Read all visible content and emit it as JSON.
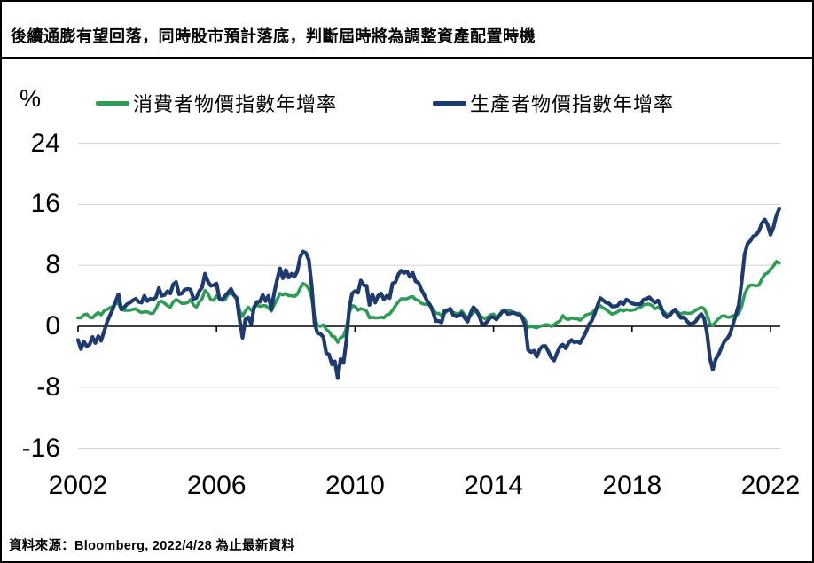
{
  "header": {
    "title": "後續通膨有望回落，同時股市預計落底，判斷屆時將為調整資產配置時機"
  },
  "footer": {
    "source": "資料來源：Bloomberg, 2022/4/28 為止最新資料"
  },
  "colors": {
    "cpi_line": "#2e9b57",
    "ppi_line": "#1e3a6e",
    "gridline": "#d9d9d9",
    "axis": "#000000"
  },
  "chart_data": {
    "type": "line",
    "unit_label": "%",
    "legend_position": "top",
    "grid": true,
    "y_axis": {
      "range": [
        -16,
        24
      ],
      "ticks": [
        24,
        16,
        8,
        0,
        -8,
        -16
      ],
      "tick_labels": [
        "24",
        "16",
        "8",
        "0",
        "-8",
        "-16"
      ]
    },
    "x_axis": {
      "start_year": 2002,
      "end": "2022-04",
      "ticks": [
        2002,
        2006,
        2010,
        2014,
        2018,
        2022
      ],
      "tick_labels": [
        "2002",
        "2006",
        "2010",
        "2014",
        "2018",
        "2022"
      ]
    },
    "series": [
      {
        "key": "cpi",
        "name": "消費者物價指數年增率",
        "color": "#2e9b57",
        "frequency": "monthly",
        "start": "2002-01",
        "values": [
          1.1,
          1.1,
          1.5,
          1.6,
          1.2,
          1.1,
          1.5,
          1.8,
          1.5,
          2.0,
          2.2,
          2.4,
          2.6,
          3.0,
          3.0,
          2.2,
          2.1,
          2.1,
          2.1,
          2.2,
          2.3,
          2.0,
          1.8,
          1.9,
          1.9,
          1.7,
          1.7,
          2.3,
          3.1,
          3.3,
          3.0,
          2.7,
          2.5,
          3.2,
          3.5,
          3.3,
          3.0,
          3.0,
          3.1,
          3.5,
          2.8,
          2.5,
          3.2,
          3.6,
          4.7,
          4.3,
          3.5,
          3.4,
          4.0,
          3.6,
          3.4,
          3.5,
          4.2,
          4.3,
          4.1,
          3.8,
          2.1,
          1.3,
          2.0,
          2.5,
          2.1,
          2.4,
          2.8,
          2.6,
          2.7,
          2.7,
          2.4,
          2.0,
          2.8,
          3.5,
          4.3,
          4.1,
          4.3,
          4.0,
          4.0,
          3.9,
          4.2,
          5.0,
          5.6,
          5.4,
          4.9,
          3.7,
          1.1,
          0.1,
          0.0,
          0.2,
          -0.4,
          -0.7,
          -1.3,
          -1.4,
          -2.1,
          -1.5,
          -1.3,
          -0.2,
          1.8,
          2.7,
          2.6,
          2.1,
          2.3,
          2.2,
          2.0,
          1.1,
          1.2,
          1.1,
          1.1,
          1.2,
          1.1,
          1.5,
          1.6,
          2.1,
          2.7,
          3.2,
          3.6,
          3.6,
          3.6,
          3.8,
          3.9,
          3.5,
          3.4,
          3.0,
          2.9,
          2.9,
          2.7,
          2.3,
          1.7,
          1.7,
          1.4,
          1.7,
          2.0,
          2.2,
          1.8,
          1.7,
          1.6,
          2.0,
          1.5,
          1.1,
          1.4,
          1.8,
          2.0,
          1.5,
          1.2,
          1.0,
          1.2,
          1.5,
          1.6,
          1.1,
          1.5,
          2.0,
          2.1,
          2.1,
          2.0,
          1.7,
          1.7,
          1.7,
          1.3,
          0.8,
          -0.1,
          0.0,
          -0.1,
          -0.2,
          0.0,
          0.1,
          0.2,
          0.2,
          0.0,
          0.2,
          0.5,
          0.7,
          1.4,
          1.0,
          0.9,
          1.1,
          1.0,
          1.0,
          0.8,
          1.1,
          1.5,
          1.6,
          1.7,
          2.1,
          2.5,
          2.7,
          2.4,
          2.2,
          1.9,
          1.6,
          1.7,
          1.9,
          2.2,
          2.0,
          2.2,
          2.1,
          2.1,
          2.2,
          2.4,
          2.5,
          2.8,
          2.9,
          2.9,
          2.7,
          2.3,
          2.5,
          2.2,
          1.9,
          1.6,
          1.5,
          1.9,
          2.0,
          1.8,
          1.6,
          1.8,
          1.7,
          1.7,
          1.8,
          2.1,
          2.3,
          2.5,
          2.3,
          1.5,
          0.3,
          0.1,
          0.6,
          1.0,
          1.3,
          1.4,
          1.2,
          1.2,
          1.4,
          1.4,
          1.7,
          2.6,
          4.2,
          5.0,
          5.4,
          5.4,
          5.3,
          5.4,
          6.2,
          6.8,
          7.0,
          7.5,
          7.9,
          8.5,
          8.3
        ]
      },
      {
        "key": "ppi",
        "name": "生產者物價指數年增率",
        "color": "#1e3a6e",
        "frequency": "monthly",
        "start": "2002-01",
        "values": [
          -1.8,
          -3.0,
          -2.0,
          -2.6,
          -2.4,
          -1.4,
          -2.2,
          -1.3,
          -1.9,
          -0.7,
          0.5,
          1.4,
          2.2,
          3.2,
          4.2,
          2.2,
          2.5,
          2.9,
          3.1,
          3.4,
          3.6,
          3.2,
          3.1,
          4.0,
          3.3,
          3.6,
          3.5,
          3.8,
          5.0,
          4.0,
          4.1,
          4.6,
          4.3,
          5.5,
          5.8,
          4.2,
          4.3,
          4.8,
          4.9,
          4.8,
          3.6,
          3.7,
          4.6,
          5.1,
          6.9,
          5.9,
          5.3,
          5.4,
          5.6,
          3.6,
          3.5,
          4.0,
          4.4,
          4.9,
          4.1,
          3.6,
          0.9,
          -1.5,
          0.9,
          1.2,
          0.3,
          2.5,
          3.2,
          3.2,
          4.1,
          3.3,
          4.0,
          2.2,
          4.4,
          6.1,
          7.6,
          6.3,
          7.4,
          6.4,
          6.9,
          6.5,
          7.2,
          9.1,
          9.8,
          9.6,
          8.7,
          5.2,
          0.4,
          -0.9,
          -1.0,
          -1.4,
          -3.5,
          -3.7,
          -5.0,
          -4.6,
          -6.8,
          -4.3,
          -4.8,
          -1.9,
          2.4,
          4.3,
          4.6,
          4.4,
          6.0,
          5.4,
          5.3,
          2.8,
          4.2,
          3.1,
          4.0,
          4.3,
          3.5,
          4.0,
          3.7,
          5.6,
          5.8,
          6.8,
          7.3,
          7.0,
          7.2,
          6.5,
          7.0,
          5.9,
          5.7,
          4.8,
          4.1,
          3.3,
          2.8,
          1.9,
          0.7,
          0.7,
          0.5,
          2.0,
          2.1,
          2.3,
          1.5,
          1.3,
          1.4,
          1.7,
          1.1,
          0.6,
          1.7,
          2.5,
          2.1,
          1.4,
          0.3,
          0.3,
          0.7,
          1.2,
          1.2,
          0.9,
          1.4,
          1.9,
          2.0,
          1.6,
          1.7,
          1.8,
          1.6,
          1.5,
          1.1,
          0.1,
          -3.1,
          -3.4,
          -3.2,
          -4.0,
          -3.0,
          -2.6,
          -2.6,
          -3.3,
          -4.1,
          -4.5,
          -3.5,
          -2.7,
          -2.4,
          -2.9,
          -2.2,
          -1.8,
          -2.1,
          -2.0,
          -2.2,
          -1.5,
          -0.8,
          0.2,
          0.7,
          1.6,
          2.7,
          3.7,
          3.4,
          3.1,
          3.0,
          2.6,
          2.6,
          2.7,
          3.2,
          2.9,
          3.5,
          3.3,
          3.0,
          2.9,
          2.9,
          2.9,
          3.5,
          3.6,
          3.8,
          3.4,
          3.1,
          3.4,
          2.6,
          1.6,
          1.2,
          1.4,
          1.9,
          2.2,
          1.5,
          1.1,
          1.2,
          0.7,
          0.3,
          0.4,
          0.6,
          1.2,
          1.6,
          1.0,
          -0.9,
          -4.2,
          -5.7,
          -4.3,
          -3.7,
          -2.8,
          -2.0,
          -1.6,
          -1.0,
          0.3,
          1.5,
          2.8,
          5.9,
          9.4,
          10.8,
          11.2,
          11.8,
          12.0,
          12.5,
          13.5,
          14.0,
          13.3,
          12.0,
          13.0,
          14.5,
          15.4
        ]
      }
    ]
  }
}
